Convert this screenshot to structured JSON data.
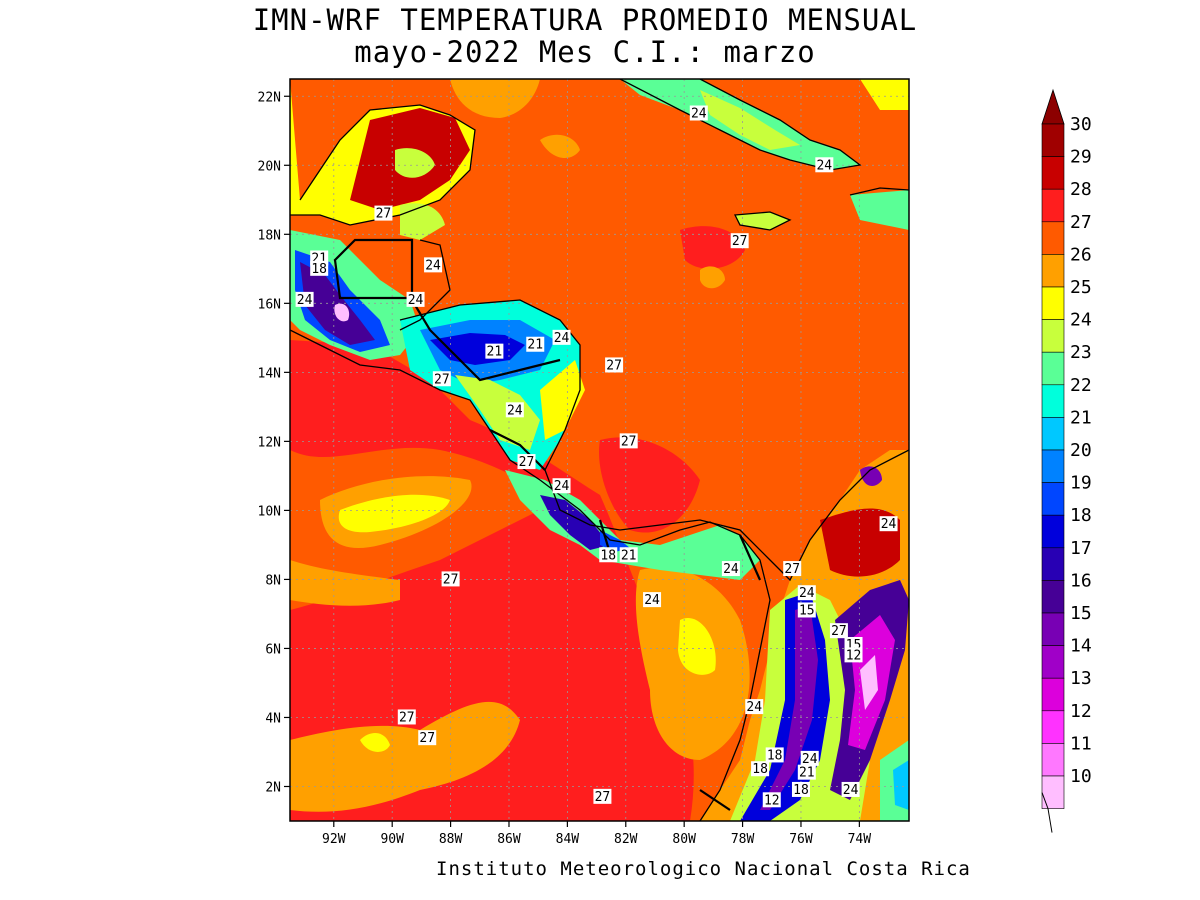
{
  "header": {
    "title_line1": "IMN-WRF  TEMPERATURA PROMEDIO MENSUAL",
    "title_line2": "mayo-2022 Mes C.I.: marzo"
  },
  "footer": {
    "credit": "Instituto Meteorologico Nacional Costa Rica"
  },
  "map": {
    "lat_ticks": [
      "22N",
      "20N",
      "18N",
      "16N",
      "14N",
      "12N",
      "10N",
      "8N",
      "6N",
      "4N",
      "2N"
    ],
    "lon_ticks": [
      "92W",
      "90W",
      "88W",
      "86W",
      "84W",
      "82W",
      "80W",
      "78W",
      "76W",
      "74W"
    ],
    "contour_labels": [
      {
        "text": "24",
        "lon": -79.5,
        "lat": 21.5
      },
      {
        "text": "24",
        "lon": -75.2,
        "lat": 20.0
      },
      {
        "text": "27",
        "lon": -90.3,
        "lat": 18.6
      },
      {
        "text": "27",
        "lon": -78.1,
        "lat": 17.8
      },
      {
        "text": "21",
        "lon": -92.5,
        "lat": 17.3
      },
      {
        "text": "18",
        "lon": -92.5,
        "lat": 17.0
      },
      {
        "text": "24",
        "lon": -88.6,
        "lat": 17.1
      },
      {
        "text": "24",
        "lon": -93.0,
        "lat": 16.1
      },
      {
        "text": "24",
        "lon": -89.2,
        "lat": 16.1
      },
      {
        "text": "21",
        "lon": -86.5,
        "lat": 14.6
      },
      {
        "text": "21",
        "lon": -85.1,
        "lat": 14.8
      },
      {
        "text": "24",
        "lon": -84.2,
        "lat": 15.0
      },
      {
        "text": "27",
        "lon": -82.4,
        "lat": 14.2
      },
      {
        "text": "27",
        "lon": -88.3,
        "lat": 13.8
      },
      {
        "text": "24",
        "lon": -85.8,
        "lat": 12.9
      },
      {
        "text": "27",
        "lon": -81.9,
        "lat": 12.0
      },
      {
        "text": "27",
        "lon": -85.4,
        "lat": 11.4
      },
      {
        "text": "24",
        "lon": -84.2,
        "lat": 10.7
      },
      {
        "text": "24",
        "lon": -73.0,
        "lat": 9.6
      },
      {
        "text": "18",
        "lon": -82.6,
        "lat": 8.7
      },
      {
        "text": "21",
        "lon": -81.9,
        "lat": 8.7
      },
      {
        "text": "24",
        "lon": -78.4,
        "lat": 8.3
      },
      {
        "text": "27",
        "lon": -76.3,
        "lat": 8.3
      },
      {
        "text": "27",
        "lon": -88.0,
        "lat": 8.0
      },
      {
        "text": "24",
        "lon": -75.8,
        "lat": 7.6
      },
      {
        "text": "15",
        "lon": -75.8,
        "lat": 7.1
      },
      {
        "text": "24",
        "lon": -81.1,
        "lat": 7.4
      },
      {
        "text": "27",
        "lon": -74.7,
        "lat": 6.5
      },
      {
        "text": "15",
        "lon": -74.2,
        "lat": 6.1
      },
      {
        "text": "12",
        "lon": -74.2,
        "lat": 5.8
      },
      {
        "text": "24",
        "lon": -77.6,
        "lat": 4.3
      },
      {
        "text": "27",
        "lon": -89.5,
        "lat": 4.0
      },
      {
        "text": "27",
        "lon": -88.8,
        "lat": 3.4
      },
      {
        "text": "18",
        "lon": -76.9,
        "lat": 2.9
      },
      {
        "text": "24",
        "lon": -75.7,
        "lat": 2.8
      },
      {
        "text": "18",
        "lon": -77.4,
        "lat": 2.5
      },
      {
        "text": "21",
        "lon": -75.8,
        "lat": 2.4
      },
      {
        "text": "18",
        "lon": -76.0,
        "lat": 1.9
      },
      {
        "text": "24",
        "lon": -74.3,
        "lat": 1.9
      },
      {
        "text": "12",
        "lon": -77.0,
        "lat": 1.6
      },
      {
        "text": "27",
        "lon": -82.8,
        "lat": 1.7
      }
    ]
  },
  "colorbar": {
    "labels": [
      "30",
      "29",
      "28",
      "27",
      "26",
      "25",
      "24",
      "23",
      "22",
      "21",
      "20",
      "19",
      "18",
      "17",
      "16",
      "15",
      "14",
      "13",
      "12",
      "11",
      "10"
    ],
    "colors": [
      "#a00000",
      "#c80000",
      "#ff1e1e",
      "#ff5a00",
      "#ffa000",
      "#ffff00",
      "#c8ff3c",
      "#5aff96",
      "#00ffdc",
      "#00c8ff",
      "#0082ff",
      "#0046ff",
      "#0000dc",
      "#2800b4",
      "#460096",
      "#7800b4",
      "#a000c8",
      "#dc00dc",
      "#ff32ff",
      "#ff78ff",
      "#ffbeff"
    ],
    "top_arrow_color": "#8c0000"
  }
}
